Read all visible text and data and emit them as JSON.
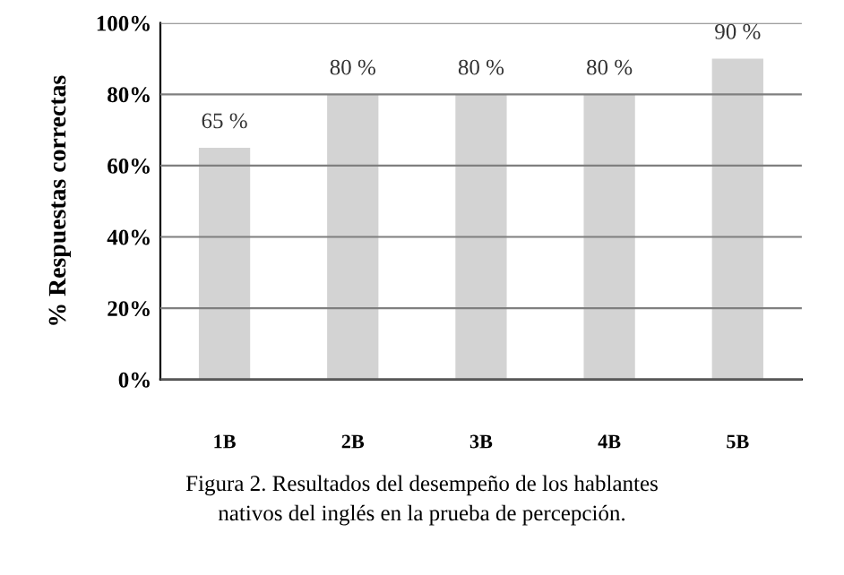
{
  "chart_data": {
    "type": "bar",
    "ylabel": "% Respuestas correctas",
    "categories": [
      "1B",
      "2B",
      "3B",
      "4B",
      "5B"
    ],
    "series": [
      {
        "color": "#d3d3d3",
        "values": [
          65,
          80,
          80,
          80,
          90
        ]
      }
    ],
    "value_labels": [
      "65 %",
      "80 %",
      "80 %",
      "80 %",
      "90 %"
    ],
    "ylim": [
      0,
      100
    ],
    "yticks": [
      {
        "value": 0,
        "label": "0%"
      },
      {
        "value": 20,
        "label": "20%"
      },
      {
        "value": 40,
        "label": "40%"
      },
      {
        "value": 60,
        "label": "60%"
      },
      {
        "value": 80,
        "label": "80%"
      },
      {
        "value": 100,
        "label": "100%"
      }
    ],
    "grid": "y",
    "annotations": [
      "Figura 2. Resultados del desempeño de los hablantes\nnativos del inglés en la prueba de percepción."
    ]
  }
}
